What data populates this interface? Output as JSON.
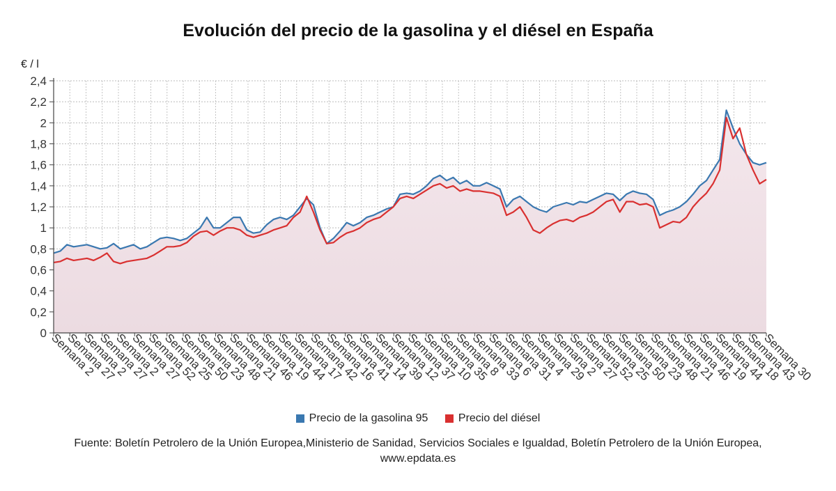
{
  "chart_data": {
    "type": "line",
    "title": "Evolución del precio de la gasolina y el diésel en España",
    "ylabel": "€ / l",
    "xlabel": "",
    "ylim": [
      0,
      2.4
    ],
    "yticks": [
      "0",
      "0,2",
      "0,4",
      "0,6",
      "0,8",
      "1",
      "1,2",
      "1,4",
      "1,6",
      "1,8",
      "2",
      "2,2",
      "2,4"
    ],
    "grid": true,
    "legend_position": "bottom",
    "x_tick_labels": [
      "Semana 2",
      "Semana 27",
      "Semana 2",
      "Semana 27",
      "Semana 2",
      "Semana 27",
      "Semana 52",
      "Semana 25",
      "Semana 50",
      "Semana 23",
      "Semana 48",
      "Semana 21",
      "Semana 46",
      "Semana 19",
      "Semana 44",
      "Semana 17",
      "Semana 42",
      "Semana 16",
      "Semana 41",
      "Semana 14",
      "Semana 39",
      "Semana 12",
      "Semana 37",
      "Semana 10",
      "Semana 35",
      "Semana 8",
      "Semana 33",
      "Semana 6",
      "Semana 31",
      "Semana 4",
      "Semana 29",
      "Semana 2",
      "Semana 27",
      "Semana 52",
      "Semana 25",
      "Semana 50",
      "Semana 23",
      "Semana 48",
      "Semana 21",
      "Semana 46",
      "Semana 19",
      "Semana 44",
      "Semana 18",
      "Semana 43",
      "Semana 30"
    ],
    "series": [
      {
        "name": "Precio de la gasolina 95",
        "color": "#3a78b0",
        "values": [
          0.76,
          0.78,
          0.84,
          0.82,
          0.83,
          0.84,
          0.82,
          0.8,
          0.81,
          0.85,
          0.8,
          0.82,
          0.84,
          0.8,
          0.82,
          0.86,
          0.9,
          0.91,
          0.9,
          0.88,
          0.9,
          0.95,
          1.0,
          1.1,
          1.0,
          1.0,
          1.05,
          1.1,
          1.1,
          0.98,
          0.95,
          0.96,
          1.03,
          1.08,
          1.1,
          1.08,
          1.12,
          1.2,
          1.28,
          1.22,
          1.0,
          0.85,
          0.9,
          0.97,
          1.05,
          1.02,
          1.05,
          1.1,
          1.12,
          1.15,
          1.18,
          1.2,
          1.32,
          1.33,
          1.32,
          1.35,
          1.4,
          1.47,
          1.5,
          1.45,
          1.48,
          1.42,
          1.45,
          1.4,
          1.4,
          1.43,
          1.4,
          1.37,
          1.2,
          1.27,
          1.3,
          1.25,
          1.2,
          1.17,
          1.15,
          1.2,
          1.22,
          1.24,
          1.22,
          1.25,
          1.24,
          1.27,
          1.3,
          1.33,
          1.32,
          1.26,
          1.32,
          1.35,
          1.33,
          1.32,
          1.27,
          1.12,
          1.15,
          1.17,
          1.2,
          1.25,
          1.32,
          1.4,
          1.45,
          1.55,
          1.65,
          2.12,
          1.95,
          1.8,
          1.7,
          1.62,
          1.6,
          1.62
        ]
      },
      {
        "name": "Precio del diésel",
        "color": "#d93030",
        "values": [
          0.67,
          0.68,
          0.71,
          0.69,
          0.7,
          0.71,
          0.69,
          0.72,
          0.76,
          0.68,
          0.66,
          0.68,
          0.69,
          0.7,
          0.71,
          0.74,
          0.78,
          0.82,
          0.82,
          0.83,
          0.86,
          0.92,
          0.96,
          0.97,
          0.93,
          0.97,
          1.0,
          1.0,
          0.98,
          0.93,
          0.91,
          0.93,
          0.95,
          0.98,
          1.0,
          1.02,
          1.1,
          1.15,
          1.3,
          1.15,
          0.98,
          0.85,
          0.86,
          0.91,
          0.95,
          0.97,
          1.0,
          1.05,
          1.08,
          1.1,
          1.15,
          1.2,
          1.28,
          1.3,
          1.28,
          1.32,
          1.36,
          1.4,
          1.42,
          1.38,
          1.4,
          1.35,
          1.37,
          1.35,
          1.35,
          1.34,
          1.33,
          1.3,
          1.12,
          1.15,
          1.2,
          1.1,
          0.98,
          0.95,
          1.0,
          1.04,
          1.07,
          1.08,
          1.06,
          1.1,
          1.12,
          1.15,
          1.2,
          1.25,
          1.27,
          1.15,
          1.25,
          1.25,
          1.22,
          1.23,
          1.2,
          1.0,
          1.03,
          1.06,
          1.05,
          1.1,
          1.2,
          1.27,
          1.33,
          1.42,
          1.55,
          2.05,
          1.85,
          1.95,
          1.7,
          1.55,
          1.42,
          1.46
        ]
      }
    ]
  },
  "legend": {
    "gasolina_label": "Precio de la gasolina 95",
    "diesel_label": "Precio del diésel"
  },
  "source_text": "Fuente: Boletín Petrolero de la Unión Europea,Ministerio de Sanidad, Servicios Sociales e Igualdad, Boletín Petrolero de la Unión Europea, www.epdata.es"
}
